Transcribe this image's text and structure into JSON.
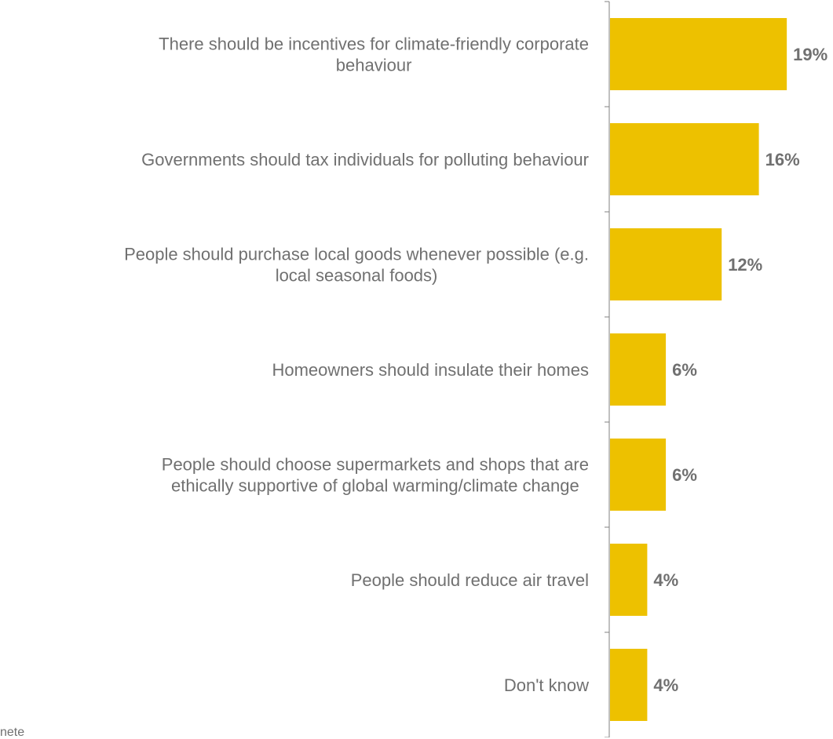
{
  "chart_data": {
    "type": "bar",
    "orientation": "horizontal",
    "categories": [
      [
        "There should be incentives for climate-friendly corporate",
        "behaviour"
      ],
      [
        "Governments should tax individuals for polluting behaviour"
      ],
      [
        "People should purchase local goods whenever possible (e.g.",
        "local seasonal foods)"
      ],
      [
        "Homeowners should insulate their homes"
      ],
      [
        "People should choose supermarkets and shops that are",
        "ethically supportive of global warming/climate change"
      ],
      [
        "People should reduce air travel"
      ],
      [
        "Don't know"
      ]
    ],
    "values": [
      19,
      16,
      12,
      6,
      6,
      4,
      4
    ],
    "value_suffix": "%",
    "xlim": [
      0,
      20
    ],
    "bar_color": "#EDC100",
    "label_color": "#707070",
    "axis_color": "#808080",
    "legend": "none",
    "grid": false
  },
  "footnote": "nete"
}
